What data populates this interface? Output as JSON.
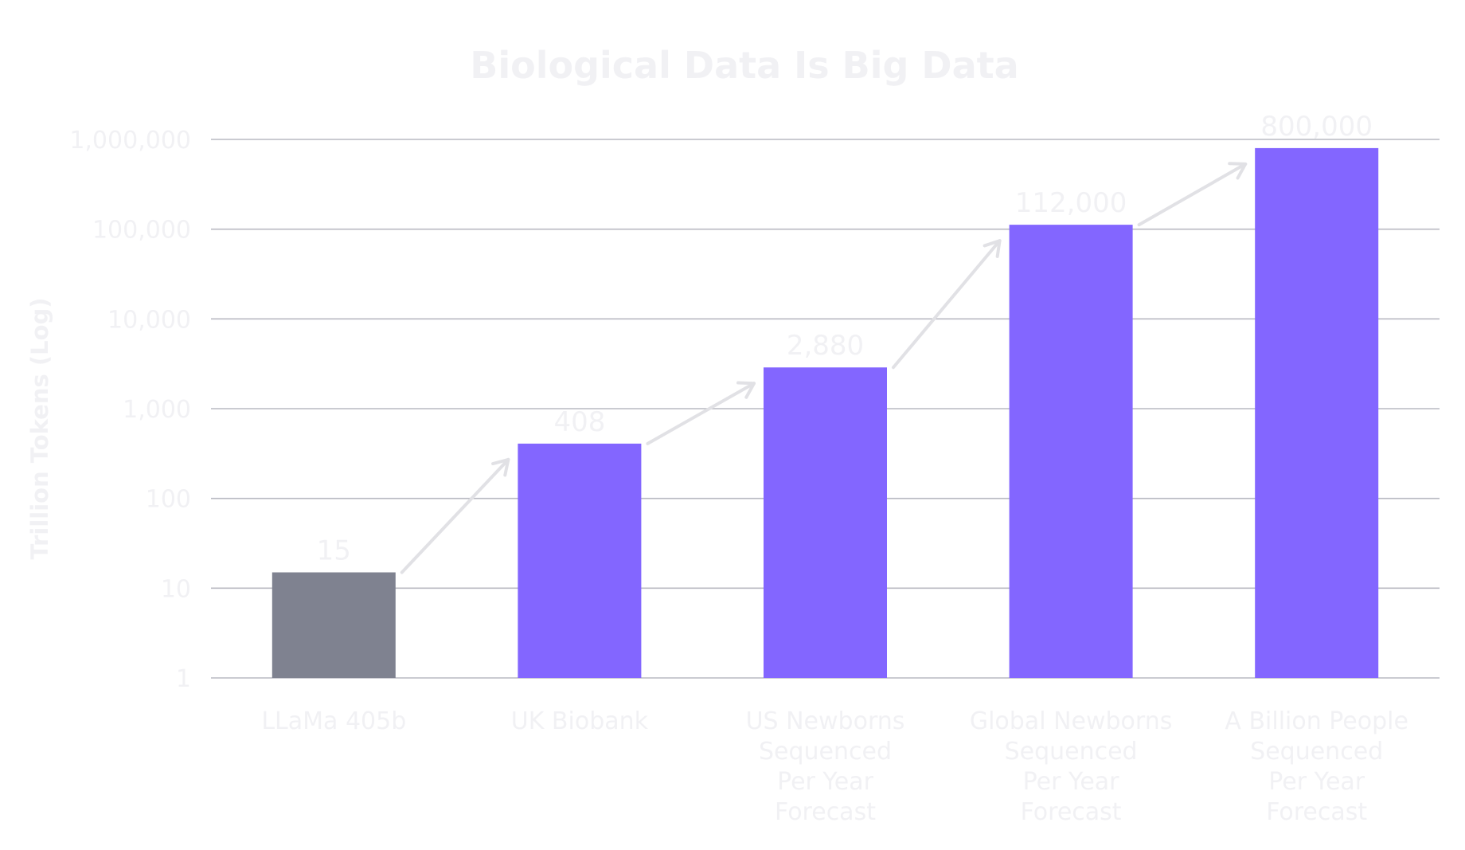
{
  "chart_data": {
    "type": "bar",
    "title": "Biological Data Is Big Data",
    "xlabel": "",
    "ylabel": "Trillion Tokens (Log)",
    "yscale": "log",
    "ylim": [
      1,
      1000000
    ],
    "grid": true,
    "legend": "none",
    "yticks": [
      "1,000,000",
      "100,000",
      "10,000",
      "1,000",
      "100",
      "10",
      "1"
    ],
    "ytick_values": [
      1000000,
      100000,
      10000,
      1000,
      100,
      10,
      1
    ],
    "categories": [
      [
        "LLaMa 405b"
      ],
      [
        "UK Biobank"
      ],
      [
        "US Newborns",
        "Sequenced",
        "Per Year",
        "Forecast"
      ],
      [
        "Global Newborns",
        "Sequenced",
        "Per Year",
        "Forecast"
      ],
      [
        "A Billion People",
        "Sequenced",
        "Per Year",
        "Forecast"
      ]
    ],
    "values": [
      15,
      408,
      2880,
      112000,
      800000
    ],
    "value_labels": [
      "15",
      "408",
      "2,880",
      "112,000",
      "800,000"
    ],
    "bar_colors": [
      "#7f8290",
      "#8366ff",
      "#8366ff",
      "#8366ff",
      "#8366ff"
    ],
    "grid_color": "#b9bac2",
    "arrow_color": "#e1e1e5",
    "text_color": "#f1f1f4",
    "arrows": true
  }
}
